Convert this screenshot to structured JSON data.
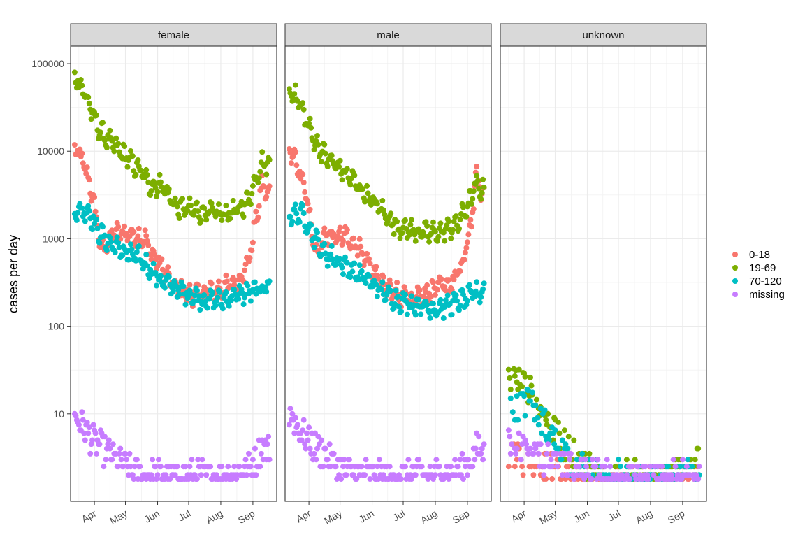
{
  "chart_data": {
    "type": "scatter",
    "title": "",
    "xlabel": "",
    "ylabel": "cases per day",
    "y_scale": "log10",
    "y_ticks": [
      10,
      100,
      1000,
      10000,
      100000
    ],
    "y_tick_labels": [
      "10",
      "100",
      "1000",
      "10000",
      "100000"
    ],
    "x_tick_labels": [
      "Apr",
      "May",
      "Jun",
      "Jul",
      "Aug",
      "Sep"
    ],
    "x_tick_days": [
      1,
      31,
      62,
      92,
      123,
      154
    ],
    "x_range_days": [
      -22,
      177
    ],
    "ylim_log10": [
      0.0,
      5.2
    ],
    "day0_date": "2020-04-01",
    "panels": [
      "female",
      "male",
      "unknown"
    ],
    "legend": {
      "title": "",
      "position": "right",
      "entries": [
        {
          "label": "0-18",
          "color": "#F8766D"
        },
        {
          "label": "19-69",
          "color": "#7CAE00"
        },
        {
          "label": "70-120",
          "color": "#00BFC4"
        },
        {
          "label": "missing",
          "color": "#C77CFF"
        }
      ]
    },
    "series_models": {
      "female": {
        "0-18": [
          [
            -16,
            10500
          ],
          [
            -8,
            6500
          ],
          [
            0,
            2800
          ],
          [
            8,
            700
          ],
          [
            18,
            1150
          ],
          [
            35,
            1150
          ],
          [
            50,
            1000
          ],
          [
            55,
            700
          ],
          [
            66,
            480
          ],
          [
            78,
            280
          ],
          [
            92,
            230
          ],
          [
            110,
            240
          ],
          [
            125,
            270
          ],
          [
            140,
            330
          ],
          [
            150,
            560
          ],
          [
            158,
            1900
          ],
          [
            163,
            4200
          ],
          [
            168,
            3200
          ]
        ],
        "19-69": [
          [
            -16,
            70000
          ],
          [
            -8,
            45000
          ],
          [
            0,
            25000
          ],
          [
            8,
            16000
          ],
          [
            18,
            12000
          ],
          [
            30,
            9000
          ],
          [
            45,
            6000
          ],
          [
            55,
            4000
          ],
          [
            66,
            4200
          ],
          [
            80,
            2300
          ],
          [
            95,
            2100
          ],
          [
            110,
            2000
          ],
          [
            125,
            1900
          ],
          [
            140,
            2100
          ],
          [
            150,
            2800
          ],
          [
            158,
            5500
          ],
          [
            163,
            7500
          ],
          [
            168,
            7000
          ]
        ],
        "70-120": [
          [
            -16,
            2100
          ],
          [
            -5,
            2100
          ],
          [
            5,
            1200
          ],
          [
            15,
            900
          ],
          [
            30,
            700
          ],
          [
            45,
            600
          ],
          [
            55,
            450
          ],
          [
            65,
            330
          ],
          [
            78,
            280
          ],
          [
            92,
            230
          ],
          [
            110,
            200
          ],
          [
            125,
            200
          ],
          [
            140,
            230
          ],
          [
            150,
            240
          ],
          [
            160,
            260
          ],
          [
            168,
            300
          ]
        ],
        "missing": [
          [
            -16,
            9
          ],
          [
            -10,
            7
          ],
          [
            0,
            5
          ],
          [
            15,
            3.5
          ],
          [
            30,
            2.5
          ],
          [
            45,
            2
          ],
          [
            60,
            2
          ],
          [
            80,
            1.8
          ],
          [
            100,
            2
          ],
          [
            120,
            2
          ],
          [
            145,
            2.2
          ],
          [
            158,
            3
          ],
          [
            163,
            4.5
          ],
          [
            168,
            4
          ]
        ]
      },
      "male": {
        "0-18": [
          [
            -16,
            10000
          ],
          [
            -8,
            6000
          ],
          [
            0,
            2500
          ],
          [
            8,
            700
          ],
          [
            18,
            1100
          ],
          [
            35,
            1100
          ],
          [
            50,
            750
          ],
          [
            60,
            500
          ],
          [
            72,
            300
          ],
          [
            90,
            220
          ],
          [
            110,
            230
          ],
          [
            125,
            270
          ],
          [
            140,
            320
          ],
          [
            150,
            520
          ],
          [
            158,
            1700
          ],
          [
            163,
            5500
          ],
          [
            168,
            3200
          ]
        ],
        "19-69": [
          [
            -16,
            50000
          ],
          [
            -8,
            35000
          ],
          [
            0,
            20000
          ],
          [
            8,
            12000
          ],
          [
            18,
            8500
          ],
          [
            30,
            6500
          ],
          [
            45,
            4500
          ],
          [
            60,
            2800
          ],
          [
            70,
            2200
          ],
          [
            85,
            1400
          ],
          [
            100,
            1250
          ],
          [
            115,
            1150
          ],
          [
            130,
            1200
          ],
          [
            145,
            1500
          ],
          [
            155,
            2500
          ],
          [
            162,
            4000
          ],
          [
            168,
            3600
          ]
        ],
        "70-120": [
          [
            -16,
            1900
          ],
          [
            -5,
            1900
          ],
          [
            5,
            1100
          ],
          [
            15,
            700
          ],
          [
            30,
            550
          ],
          [
            45,
            420
          ],
          [
            60,
            320
          ],
          [
            75,
            230
          ],
          [
            92,
            190
          ],
          [
            110,
            170
          ],
          [
            125,
            160
          ],
          [
            140,
            180
          ],
          [
            150,
            200
          ],
          [
            160,
            230
          ],
          [
            168,
            250
          ]
        ],
        "missing": [
          [
            -16,
            10
          ],
          [
            -10,
            7
          ],
          [
            0,
            5
          ],
          [
            15,
            3.5
          ],
          [
            30,
            2.5
          ],
          [
            45,
            2
          ],
          [
            60,
            2
          ],
          [
            80,
            1.8
          ],
          [
            100,
            2
          ],
          [
            120,
            2
          ],
          [
            145,
            2.2
          ],
          [
            158,
            3
          ],
          [
            163,
            4
          ],
          [
            168,
            3.5
          ]
        ]
      },
      "unknown": {
        "0-18": [
          [
            -10,
            3.5
          ],
          [
            0,
            3
          ],
          [
            20,
            2.5
          ],
          [
            40,
            2
          ],
          [
            70,
            1.8
          ],
          [
            120,
            1.8
          ],
          [
            168,
            1.8
          ]
        ],
        "19-69": [
          [
            -10,
            25
          ],
          [
            0,
            22
          ],
          [
            10,
            16
          ],
          [
            20,
            10
          ],
          [
            30,
            6
          ],
          [
            45,
            4
          ],
          [
            60,
            2.5
          ],
          [
            80,
            2
          ],
          [
            100,
            2
          ],
          [
            120,
            2
          ],
          [
            140,
            1.8
          ],
          [
            160,
            2.5
          ],
          [
            168,
            3
          ]
        ],
        "70-120": [
          [
            -10,
            10
          ],
          [
            0,
            14
          ],
          [
            10,
            12
          ],
          [
            20,
            8
          ],
          [
            30,
            5
          ],
          [
            45,
            3
          ],
          [
            60,
            2.5
          ],
          [
            80,
            2
          ],
          [
            100,
            1.8
          ],
          [
            120,
            1.8
          ],
          [
            140,
            1.8
          ],
          [
            168,
            2
          ]
        ],
        "missing": [
          [
            -10,
            5
          ],
          [
            0,
            4
          ],
          [
            20,
            3
          ],
          [
            40,
            2.5
          ],
          [
            70,
            2
          ],
          [
            120,
            1.8
          ],
          [
            168,
            2
          ]
        ]
      }
    }
  }
}
